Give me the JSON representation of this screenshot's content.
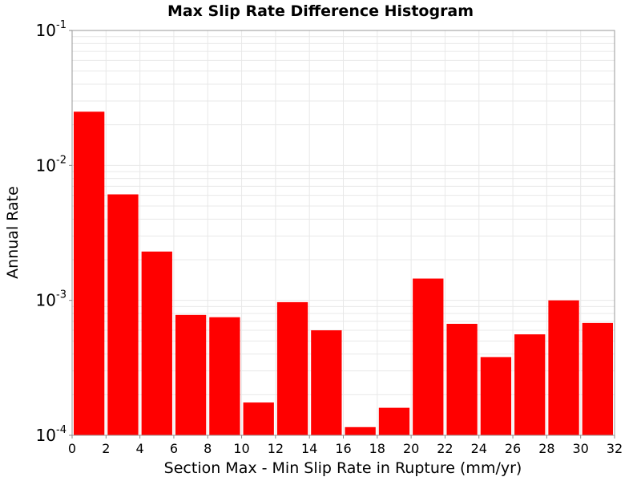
{
  "chart_data": {
    "type": "bar",
    "title": "Max Slip Rate Difference Histogram",
    "xlabel": "Section Max - Min Slip Rate in Rupture (mm/yr)",
    "ylabel": "Annual Rate",
    "xlim": [
      0,
      32
    ],
    "ylim": [
      0.0001,
      0.1
    ],
    "yscale": "log",
    "bin_width": 2,
    "grid": true,
    "x_ticks": [
      "0",
      "2",
      "4",
      "6",
      "8",
      "10",
      "12",
      "14",
      "16",
      "18",
      "20",
      "22",
      "24",
      "26",
      "28",
      "30",
      "32"
    ],
    "y_ticks": [
      {
        "base": "10",
        "exp": "-4",
        "value": 0.0001
      },
      {
        "base": "10",
        "exp": "-3",
        "value": 0.001
      },
      {
        "base": "10",
        "exp": "-2",
        "value": 0.01
      },
      {
        "base": "10",
        "exp": "-1",
        "value": 0.1
      }
    ],
    "bins": [
      {
        "x": 1,
        "value": 0.025
      },
      {
        "x": 3,
        "value": 0.0061
      },
      {
        "x": 5,
        "value": 0.0023
      },
      {
        "x": 7,
        "value": 0.00078
      },
      {
        "x": 9,
        "value": 0.00075
      },
      {
        "x": 11,
        "value": 0.000175
      },
      {
        "x": 13,
        "value": 0.00097
      },
      {
        "x": 15,
        "value": 0.0006
      },
      {
        "x": 17,
        "value": 0.000115
      },
      {
        "x": 19,
        "value": 0.00016
      },
      {
        "x": 21,
        "value": 0.00145
      },
      {
        "x": 23,
        "value": 0.00067
      },
      {
        "x": 25,
        "value": 0.00038
      },
      {
        "x": 27,
        "value": 0.00056
      },
      {
        "x": 29,
        "value": 0.001
      },
      {
        "x": 31,
        "value": 0.00068
      }
    ],
    "bar_color": "#ff0000",
    "grid_color": "#e8e8e8"
  }
}
